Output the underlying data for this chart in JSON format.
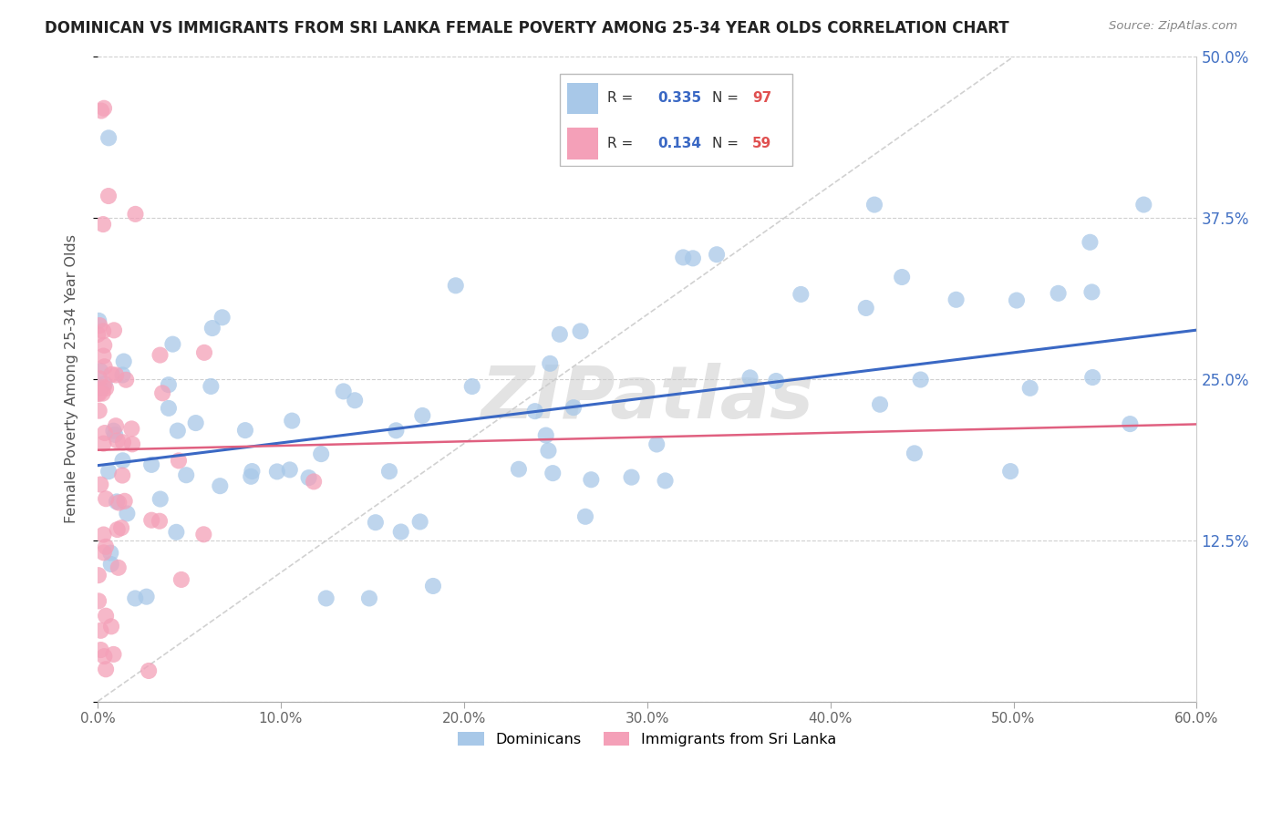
{
  "title": "DOMINICAN VS IMMIGRANTS FROM SRI LANKA FEMALE POVERTY AMONG 25-34 YEAR OLDS CORRELATION CHART",
  "source": "Source: ZipAtlas.com",
  "ylabel": "Female Poverty Among 25-34 Year Olds",
  "xlim": [
    0.0,
    0.6
  ],
  "ylim": [
    0.0,
    0.5
  ],
  "xtick_vals": [
    0.0,
    0.1,
    0.2,
    0.3,
    0.4,
    0.5,
    0.6
  ],
  "xticklabels": [
    "0.0%",
    "10.0%",
    "20.0%",
    "30.0%",
    "40.0%",
    "50.0%",
    "60.0%"
  ],
  "ytick_vals": [
    0.0,
    0.125,
    0.25,
    0.375,
    0.5
  ],
  "yticklabels": [
    "",
    "12.5%",
    "25.0%",
    "37.5%",
    "50.0%"
  ],
  "blue_color": "#a8c8e8",
  "pink_color": "#f4a0b8",
  "blue_line_color": "#3a68c4",
  "pink_line_color": "#e06080",
  "blue_R": 0.335,
  "blue_N": 97,
  "pink_R": 0.134,
  "pink_N": 59,
  "blue_line_start_y": 0.183,
  "blue_line_end_y": 0.288,
  "pink_line_start_y": 0.195,
  "pink_line_end_y": 0.215,
  "diag_line_color": "#cccccc",
  "watermark": "ZIPatlas",
  "background_color": "#ffffff",
  "grid_color": "#d0d0d0",
  "legend_label_blue": "Dominicans",
  "legend_label_pink": "Immigrants from Sri Lanka"
}
